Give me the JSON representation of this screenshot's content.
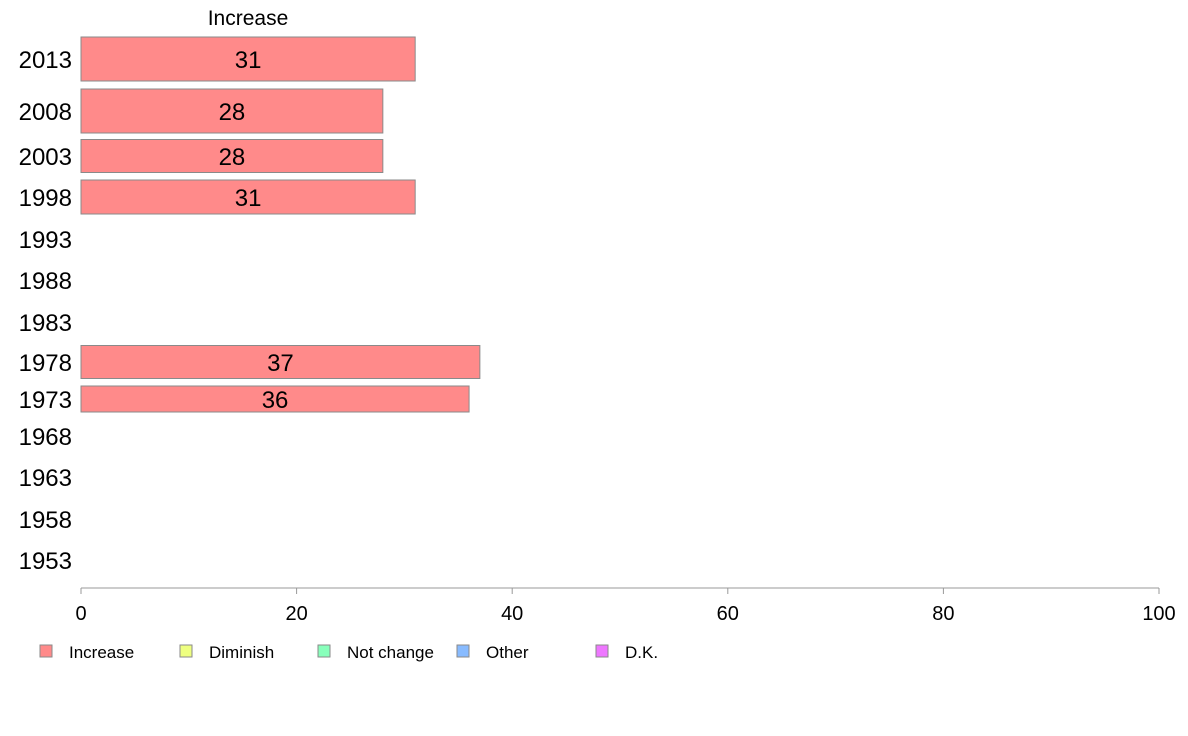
{
  "chart_data": {
    "type": "bar",
    "orientation": "horizontal",
    "title": "Increase",
    "categories": [
      "2013",
      "2008",
      "2003",
      "1998",
      "1993",
      "1988",
      "1983",
      "1978",
      "1973",
      "1968",
      "1963",
      "1958",
      "1953"
    ],
    "series": [
      {
        "name": "Increase",
        "color": "#ff8a8a",
        "values": [
          31,
          28,
          28,
          31,
          null,
          null,
          null,
          37,
          36,
          null,
          null,
          null,
          null
        ],
        "value_labels": [
          "31",
          "28",
          "28",
          "31",
          "",
          "",
          "",
          "37",
          "36",
          "",
          "",
          "",
          ""
        ]
      }
    ],
    "xlim": [
      0,
      100
    ],
    "x_ticks": [
      "0",
      "20",
      "40",
      "60",
      "80",
      "100"
    ],
    "grid": false,
    "legend": {
      "position": "bottom-left",
      "items": [
        {
          "label": "Increase",
          "color": "#ff8a8a"
        },
        {
          "label": "Diminish",
          "color": "#eeff80"
        },
        {
          "label": "Not change",
          "color": "#88ffbb"
        },
        {
          "label": "Other",
          "color": "#88bbff"
        },
        {
          "label": "D.K.",
          "color": "#ee77ff"
        }
      ]
    }
  }
}
